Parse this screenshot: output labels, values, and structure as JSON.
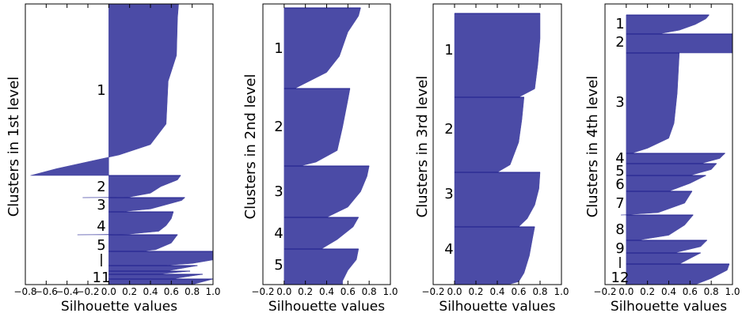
{
  "colors": {
    "fill": "#4b4ba6",
    "edge": "#1c1c8c",
    "frame": "#000000",
    "background": "#ffffff"
  },
  "chart_data": [
    {
      "type": "silhouette",
      "xlabel": "Silhouette values",
      "ylabel": "Clusters in 1st level",
      "xlim": [
        -0.8,
        1.0
      ],
      "xticks": [
        -0.8,
        -0.6,
        -0.4,
        -0.2,
        0.0,
        0.2,
        0.4,
        0.6,
        0.8,
        1.0
      ],
      "xtick_labels": [
        "−0.8",
        "−0.6",
        "−0.4",
        "−0.2",
        "0.0",
        "0.2",
        "0.4",
        "0.6",
        "0.8",
        "1.0"
      ],
      "grid": false,
      "clusters": [
        {
          "label": "1",
          "profile": [
            [
              0,
              0.67
            ],
            [
              0.08,
              0.66
            ],
            [
              0.3,
              0.65
            ],
            [
              0.45,
              0.57
            ],
            [
              0.7,
              0.55
            ],
            [
              0.82,
              0.4
            ],
            [
              0.88,
              0.1
            ],
            [
              0.92,
              -0.2
            ],
            [
              0.96,
              -0.5
            ],
            [
              1,
              -0.75
            ]
          ]
        },
        {
          "label": "2",
          "profile": [
            [
              0,
              0.69
            ],
            [
              0.2,
              0.66
            ],
            [
              0.5,
              0.5
            ],
            [
              0.8,
              0.4
            ],
            [
              0.97,
              0.2
            ],
            [
              1,
              -0.25
            ]
          ]
        },
        {
          "label": "3",
          "profile": [
            [
              0,
              0.73
            ],
            [
              0.2,
              0.7
            ],
            [
              0.5,
              0.55
            ],
            [
              0.8,
              0.4
            ],
            [
              1,
              0.1
            ]
          ]
        },
        {
          "label": "4",
          "profile": [
            [
              0,
              0.62
            ],
            [
              0.3,
              0.6
            ],
            [
              0.6,
              0.55
            ],
            [
              0.85,
              0.48
            ],
            [
              0.97,
              0.2
            ],
            [
              1,
              -0.3
            ]
          ]
        },
        {
          "label": "5",
          "profile": [
            [
              0,
              0.66
            ],
            [
              0.5,
              0.6
            ],
            [
              0.9,
              0.45
            ],
            [
              1,
              0.3
            ]
          ]
        },
        {
          "label": "",
          "profile": [
            [
              0,
              1.0
            ],
            [
              0.6,
              1.0
            ],
            [
              0.85,
              0.8
            ],
            [
              1,
              0.5
            ]
          ]
        },
        {
          "label": "",
          "profile": [
            [
              0,
              0.85
            ],
            [
              1,
              0.55
            ]
          ]
        },
        {
          "label": "",
          "profile": [
            [
              0,
              0.78
            ],
            [
              1,
              0.45
            ]
          ]
        },
        {
          "label": "",
          "profile": [
            [
              0,
              0.9
            ],
            [
              1,
              0.6
            ]
          ]
        },
        {
          "label": "11",
          "profile": [
            [
              0,
              1.0
            ],
            [
              1,
              0.8
            ]
          ]
        }
      ]
    },
    {
      "type": "silhouette",
      "xlabel": "Silhouette values",
      "ylabel": "Clusters in 2nd level",
      "xlim": [
        -0.2,
        1.0
      ],
      "xticks": [
        -0.2,
        0.0,
        0.2,
        0.4,
        0.6,
        0.8,
        1.0
      ],
      "xtick_labels": [
        "−0.2",
        "0.0",
        "0.2",
        "0.4",
        "0.6",
        "0.8",
        "1.0"
      ],
      "grid": false,
      "clusters": [
        {
          "label": "1",
          "profile": [
            [
              0,
              0.72
            ],
            [
              0.1,
              0.7
            ],
            [
              0.3,
              0.6
            ],
            [
              0.6,
              0.52
            ],
            [
              0.8,
              0.4
            ],
            [
              1,
              0.1
            ]
          ]
        },
        {
          "label": "2",
          "profile": [
            [
              0,
              0.62
            ],
            [
              0.15,
              0.6
            ],
            [
              0.5,
              0.55
            ],
            [
              0.8,
              0.5
            ],
            [
              0.95,
              0.3
            ],
            [
              1,
              0.15
            ]
          ]
        },
        {
          "label": "3",
          "profile": [
            [
              0,
              0.8
            ],
            [
              0.2,
              0.78
            ],
            [
              0.5,
              0.72
            ],
            [
              0.8,
              0.6
            ],
            [
              1,
              0.4
            ]
          ]
        },
        {
          "label": "4",
          "profile": [
            [
              0,
              0.7
            ],
            [
              0.3,
              0.65
            ],
            [
              0.7,
              0.5
            ],
            [
              1,
              0.35
            ]
          ]
        },
        {
          "label": "5",
          "profile": [
            [
              0,
              0.7
            ],
            [
              0.3,
              0.68
            ],
            [
              0.6,
              0.6
            ],
            [
              0.9,
              0.55
            ],
            [
              1,
              0.55
            ]
          ]
        }
      ]
    },
    {
      "type": "silhouette",
      "xlabel": "Silhouette values",
      "ylabel": "Clusters in 3rd level",
      "xlim": [
        -0.2,
        1.0
      ],
      "xticks": [
        -0.2,
        0.0,
        0.2,
        0.4,
        0.6,
        0.8,
        1.0
      ],
      "xtick_labels": [
        "−0.2",
        "0.0",
        "0.2",
        "0.4",
        "0.6",
        "0.8",
        "1.0"
      ],
      "grid": false,
      "clusters": [
        {
          "label": "1",
          "profile": [
            [
              0,
              0.8
            ],
            [
              0.3,
              0.8
            ],
            [
              0.6,
              0.78
            ],
            [
              0.9,
              0.75
            ],
            [
              1,
              0.6
            ]
          ]
        },
        {
          "label": "2",
          "profile": [
            [
              0,
              0.65
            ],
            [
              0.3,
              0.63
            ],
            [
              0.6,
              0.6
            ],
            [
              0.9,
              0.52
            ],
            [
              1,
              0.4
            ]
          ]
        },
        {
          "label": "3",
          "profile": [
            [
              0,
              0.8
            ],
            [
              0.3,
              0.79
            ],
            [
              0.6,
              0.75
            ],
            [
              0.85,
              0.68
            ],
            [
              1,
              0.6
            ]
          ]
        },
        {
          "label": "4",
          "profile": [
            [
              0,
              0.75
            ],
            [
              0.2,
              0.73
            ],
            [
              0.5,
              0.7
            ],
            [
              0.8,
              0.65
            ],
            [
              0.95,
              0.6
            ],
            [
              1,
              0.5
            ]
          ]
        }
      ]
    },
    {
      "type": "silhouette",
      "xlabel": "Silhouette values",
      "ylabel": "Clusters in 4th level",
      "xlim": [
        -0.2,
        1.0
      ],
      "xticks": [
        -0.2,
        0.0,
        0.2,
        0.4,
        0.6,
        0.8,
        1.0
      ],
      "xtick_labels": [
        "−0.2",
        "0.0",
        "0.2",
        "0.4",
        "0.6",
        "0.8",
        "1.0"
      ],
      "grid": false,
      "clusters": [
        {
          "label": "1",
          "profile": [
            [
              0,
              0.78
            ],
            [
              0.2,
              0.75
            ],
            [
              0.5,
              0.65
            ],
            [
              0.8,
              0.5
            ],
            [
              1,
              0.3
            ]
          ]
        },
        {
          "label": "2",
          "profile": [
            [
              0,
              1.0
            ],
            [
              1,
              1.0
            ]
          ]
        },
        {
          "label": "3",
          "profile": [
            [
              0,
              0.5
            ],
            [
              0.4,
              0.48
            ],
            [
              0.7,
              0.45
            ],
            [
              0.85,
              0.4
            ],
            [
              0.95,
              0.2
            ],
            [
              1,
              0.05
            ]
          ]
        },
        {
          "label": "4",
          "profile": [
            [
              0,
              0.93
            ],
            [
              0.5,
              0.88
            ],
            [
              1,
              0.7
            ]
          ]
        },
        {
          "label": "5",
          "profile": [
            [
              0,
              0.85
            ],
            [
              0.5,
              0.8
            ],
            [
              1,
              0.6
            ]
          ]
        },
        {
          "label": "6",
          "profile": [
            [
              0,
              0.75
            ],
            [
              0.5,
              0.6
            ],
            [
              1,
              0.4
            ]
          ]
        },
        {
          "label": "7",
          "profile": [
            [
              0,
              0.62
            ],
            [
              0.5,
              0.55
            ],
            [
              0.9,
              0.3
            ],
            [
              1,
              -0.05
            ]
          ]
        },
        {
          "label": "8",
          "profile": [
            [
              0,
              0.63
            ],
            [
              0.4,
              0.55
            ],
            [
              0.8,
              0.4
            ],
            [
              1,
              0.1
            ]
          ]
        },
        {
          "label": "9",
          "profile": [
            [
              0,
              0.76
            ],
            [
              0.5,
              0.7
            ],
            [
              1,
              0.45
            ]
          ]
        },
        {
          "label": "",
          "profile": [
            [
              0,
              0.7
            ],
            [
              1,
              0.5
            ]
          ]
        },
        {
          "label": "12",
          "profile": [
            [
              0,
              0.97
            ],
            [
              0.3,
              0.95
            ],
            [
              0.7,
              0.8
            ],
            [
              1,
              0.65
            ]
          ]
        }
      ]
    }
  ]
}
